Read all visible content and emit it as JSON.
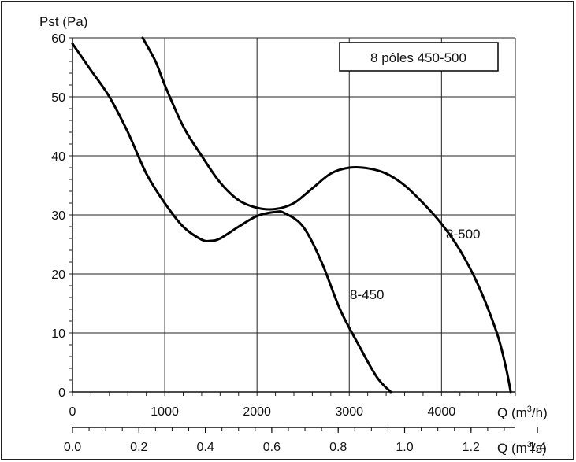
{
  "chart_data": {
    "type": "line",
    "title": "8 pôles 450-500",
    "ylabel": "Pst (Pa)",
    "xlabel_m3h": "Q (m",
    "xlabel_m3h_sup": "3",
    "xlabel_m3h_end": "/h)",
    "xlabel_m3s": "Q (m",
    "xlabel_m3s_sup": "3",
    "xlabel_m3s_end": "/s)",
    "xlim": [
      0,
      4800
    ],
    "ylim": [
      0,
      60
    ],
    "x_ticks": [
      "0",
      "1000",
      "2000",
      "3000",
      "4000"
    ],
    "x_tick_values": [
      0,
      1000,
      2000,
      3000,
      4000
    ],
    "x2_ticks": [
      "0.0",
      "0.2",
      "0.4",
      "0.6",
      "0.8",
      "1.0",
      "1.2",
      "1.4"
    ],
    "x2_tick_values": [
      0,
      0.2,
      0.4,
      0.6,
      0.8,
      1.0,
      1.2,
      1.4
    ],
    "y_ticks": [
      "0",
      "10",
      "20",
      "30",
      "40",
      "50",
      "60"
    ],
    "y_tick_values": [
      0,
      10,
      20,
      30,
      40,
      50,
      60
    ],
    "grid": true,
    "series": [
      {
        "name": "8-450",
        "x": [
          0,
          200,
          400,
          600,
          800,
          1000,
          1200,
          1400,
          1500,
          1600,
          1800,
          2000,
          2200,
          2300,
          2500,
          2700,
          2900,
          3100,
          3300,
          3450
        ],
        "y": [
          59,
          54.5,
          50,
          44,
          37,
          32,
          28,
          25.8,
          25.6,
          26,
          28,
          29.8,
          30.5,
          30.3,
          28,
          22,
          14,
          8,
          2.5,
          0
        ]
      },
      {
        "name": "8-500",
        "x": [
          760,
          900,
          1000,
          1200,
          1400,
          1600,
          1800,
          2000,
          2200,
          2400,
          2600,
          2800,
          3000,
          3200,
          3400,
          3600,
          3800,
          4000,
          4200,
          4400,
          4600,
          4700,
          4750
        ],
        "y": [
          60,
          56,
          52,
          45,
          40,
          35.5,
          32.5,
          31.2,
          31,
          32,
          34.5,
          37,
          38,
          37.9,
          37,
          35,
          32,
          28.5,
          24,
          18,
          10,
          4,
          0
        ]
      }
    ],
    "annotations": [
      "8-450",
      "8-500"
    ]
  }
}
